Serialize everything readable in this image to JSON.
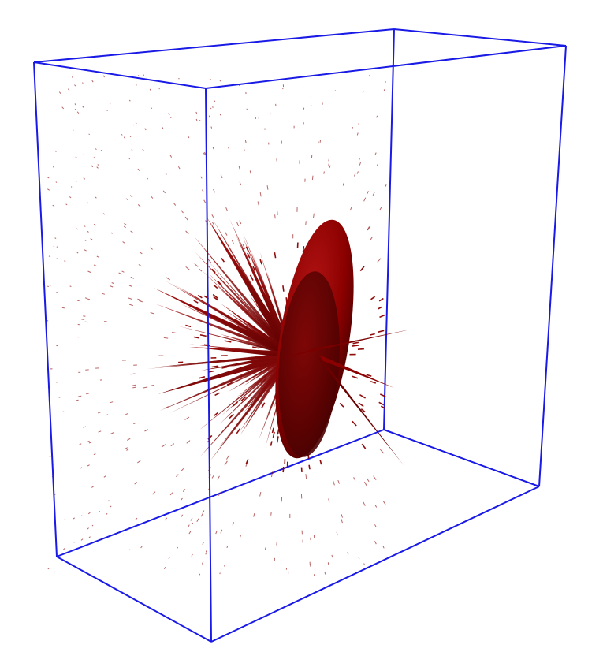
{
  "scene": {
    "background": "#ffffff",
    "box_color": "#1a1ae6",
    "glyph_color": "#8b0000",
    "glyph_dark": "#5a0000",
    "glyph_light": "#b01010",
    "description_icon": "3d-tensor-glyph-visualization"
  }
}
